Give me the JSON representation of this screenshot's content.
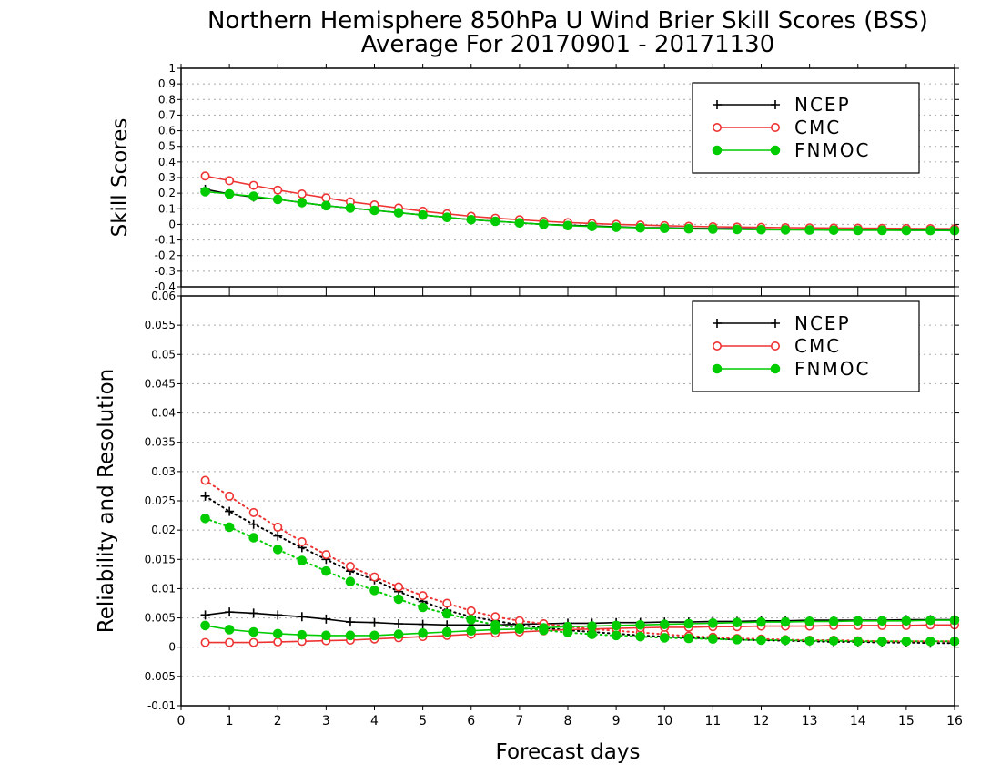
{
  "title_line1": "Northern Hemisphere 850hPa U Wind Brier Skill Scores (BSS)",
  "title_line2": "Average For 20170901 - 20171130",
  "xlabel": "Forecast days",
  "colors": {
    "NCEP": "#000000",
    "CMC": "#ee3333",
    "FNMOC": "#00cc00"
  },
  "chart_data": [
    {
      "type": "line",
      "ylabel": "Skill Scores",
      "xlim": [
        0,
        16
      ],
      "ylim": [
        -0.4,
        1
      ],
      "xticks": [
        "0",
        "1",
        "2",
        "3",
        "4",
        "5",
        "6",
        "7",
        "8",
        "9",
        "10",
        "11",
        "12",
        "13",
        "14",
        "15",
        "16"
      ],
      "yticks": [
        "1",
        "0.9",
        "0.8",
        "0.7",
        "0.6",
        "0.5",
        "0.4",
        "0.3",
        "0.2",
        "0.1",
        "0",
        "-0.1",
        "-0.2",
        "-0.3",
        "-0.4"
      ],
      "grid": true,
      "legend": {
        "position": "top-right",
        "entries": [
          "NCEP",
          "CMC",
          "FNMOC"
        ]
      },
      "x": [
        0.5,
        1,
        1.5,
        2,
        2.5,
        3,
        3.5,
        4,
        4.5,
        5,
        5.5,
        6,
        6.5,
        7,
        7.5,
        8,
        8.5,
        9,
        9.5,
        10,
        10.5,
        11,
        11.5,
        12,
        12.5,
        13,
        13.5,
        14,
        14.5,
        15,
        15.5,
        16
      ],
      "series": [
        {
          "name": "NCEP",
          "marker": "plus",
          "style": "solid",
          "values": [
            0.225,
            0.195,
            0.175,
            0.16,
            0.14,
            0.12,
            0.105,
            0.09,
            0.075,
            0.06,
            0.045,
            0.03,
            0.02,
            0.01,
            0.0,
            -0.005,
            -0.01,
            -0.015,
            -0.02,
            -0.022,
            -0.025,
            -0.027,
            -0.028,
            -0.03,
            -0.032,
            -0.033,
            -0.034,
            -0.035,
            -0.036,
            -0.037,
            -0.037,
            -0.038
          ]
        },
        {
          "name": "CMC",
          "marker": "open-circle",
          "style": "solid",
          "values": [
            0.31,
            0.28,
            0.25,
            0.22,
            0.195,
            0.17,
            0.145,
            0.125,
            0.105,
            0.085,
            0.068,
            0.052,
            0.04,
            0.03,
            0.02,
            0.012,
            0.006,
            0.0,
            -0.004,
            -0.008,
            -0.012,
            -0.015,
            -0.017,
            -0.019,
            -0.021,
            -0.022,
            -0.023,
            -0.024,
            -0.025,
            -0.026,
            -0.027,
            -0.028
          ]
        },
        {
          "name": "FNMOC",
          "marker": "filled-circle",
          "style": "solid",
          "values": [
            0.21,
            0.195,
            0.18,
            0.16,
            0.14,
            0.12,
            0.105,
            0.09,
            0.075,
            0.06,
            0.045,
            0.03,
            0.02,
            0.01,
            0.0,
            -0.008,
            -0.013,
            -0.018,
            -0.022,
            -0.025,
            -0.028,
            -0.03,
            -0.032,
            -0.034,
            -0.035,
            -0.036,
            -0.037,
            -0.038,
            -0.038,
            -0.039,
            -0.039,
            -0.04
          ]
        }
      ]
    },
    {
      "type": "line",
      "ylabel": "Reliability and Resolution",
      "xlim": [
        0,
        16
      ],
      "ylim": [
        -0.01,
        0.06
      ],
      "xticks": [
        "0",
        "1",
        "2",
        "3",
        "4",
        "5",
        "6",
        "7",
        "8",
        "9",
        "10",
        "11",
        "12",
        "13",
        "14",
        "15",
        "16"
      ],
      "yticks": [
        "0.06",
        "0.055",
        "0.05",
        "0.045",
        "0.04",
        "0.035",
        "0.03",
        "0.025",
        "0.02",
        "0.015",
        "0.01",
        "0.005",
        "0",
        "-0.005",
        "-0.01"
      ],
      "grid": true,
      "legend": {
        "position": "top-right",
        "entries": [
          "NCEP",
          "CMC",
          "FNMOC"
        ]
      },
      "x": [
        0.5,
        1,
        1.5,
        2,
        2.5,
        3,
        3.5,
        4,
        4.5,
        5,
        5.5,
        6,
        6.5,
        7,
        7.5,
        8,
        8.5,
        9,
        9.5,
        10,
        10.5,
        11,
        11.5,
        12,
        12.5,
        13,
        13.5,
        14,
        14.5,
        15,
        15.5,
        16
      ],
      "series": [
        {
          "name": "NCEP",
          "marker": "plus",
          "style": "dotted",
          "values": [
            0.0258,
            0.0232,
            0.021,
            0.019,
            0.017,
            0.015,
            0.013,
            0.0115,
            0.0095,
            0.0078,
            0.0063,
            0.0052,
            0.0045,
            0.0038,
            0.0033,
            0.0029,
            0.0026,
            0.0023,
            0.002,
            0.0018,
            0.0016,
            0.0015,
            0.0013,
            0.0012,
            0.0011,
            0.001,
            0.0009,
            0.0009,
            0.0008,
            0.0008,
            0.0007,
            0.0007
          ]
        },
        {
          "name": "NCEP",
          "marker": "plus",
          "style": "solid",
          "values": [
            0.0055,
            0.006,
            0.0058,
            0.0055,
            0.0052,
            0.0048,
            0.0043,
            0.0042,
            0.004,
            0.0039,
            0.0038,
            0.0038,
            0.0038,
            0.0039,
            0.004,
            0.0041,
            0.0041,
            0.0042,
            0.0042,
            0.0043,
            0.0043,
            0.0044,
            0.0044,
            0.0045,
            0.0045,
            0.0046,
            0.0046,
            0.0046,
            0.0046,
            0.0047,
            0.0047,
            0.0047
          ]
        },
        {
          "name": "CMC",
          "marker": "open-circle",
          "style": "dotted",
          "values": [
            0.0285,
            0.0258,
            0.023,
            0.0205,
            0.018,
            0.0158,
            0.0138,
            0.012,
            0.0103,
            0.0088,
            0.0075,
            0.0062,
            0.0052,
            0.0045,
            0.004,
            0.0035,
            0.0031,
            0.0028,
            0.0025,
            0.0022,
            0.0019,
            0.0017,
            0.0015,
            0.0014,
            0.0013,
            0.0012,
            0.0012,
            0.0011,
            0.001,
            0.001,
            0.001,
            0.001
          ]
        },
        {
          "name": "CMC",
          "marker": "open-circle",
          "style": "solid",
          "values": [
            0.0008,
            0.0008,
            0.0008,
            0.0009,
            0.001,
            0.0011,
            0.0012,
            0.0014,
            0.0016,
            0.0018,
            0.002,
            0.0022,
            0.0024,
            0.0026,
            0.0028,
            0.003,
            0.0031,
            0.0032,
            0.0033,
            0.0034,
            0.0034,
            0.0035,
            0.0035,
            0.0036,
            0.0036,
            0.0036,
            0.0037,
            0.0037,
            0.0037,
            0.0037,
            0.0038,
            0.0038
          ]
        },
        {
          "name": "FNMOC",
          "marker": "filled-circle",
          "style": "dotted",
          "values": [
            0.022,
            0.0205,
            0.0187,
            0.0167,
            0.0148,
            0.013,
            0.0112,
            0.0097,
            0.0082,
            0.0068,
            0.0057,
            0.0047,
            0.0038,
            0.0033,
            0.0029,
            0.0025,
            0.0022,
            0.002,
            0.0018,
            0.0016,
            0.0015,
            0.0014,
            0.0013,
            0.0012,
            0.0012,
            0.0011,
            0.0011,
            0.001,
            0.001,
            0.001,
            0.001,
            0.001
          ]
        },
        {
          "name": "FNMOC",
          "marker": "filled-circle",
          "style": "solid",
          "values": [
            0.0037,
            0.003,
            0.0026,
            0.0023,
            0.0021,
            0.002,
            0.002,
            0.002,
            0.0022,
            0.0024,
            0.0026,
            0.0028,
            0.003,
            0.0031,
            0.0033,
            0.0035,
            0.0036,
            0.0037,
            0.0038,
            0.0039,
            0.004,
            0.0041,
            0.0042,
            0.0043,
            0.0043,
            0.0044,
            0.0044,
            0.0045,
            0.0045,
            0.0045,
            0.0046,
            0.0046
          ]
        }
      ]
    }
  ]
}
